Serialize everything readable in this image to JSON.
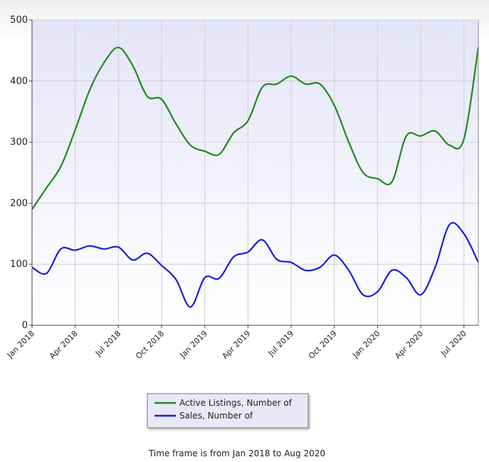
{
  "chart_data": {
    "type": "line",
    "categories": [
      "Jan 2018",
      null,
      null,
      "Apr 2018",
      null,
      null,
      "Jul 2018",
      null,
      null,
      "Oct 2018",
      null,
      null,
      "Jan 2019",
      null,
      null,
      "Apr 2019",
      null,
      null,
      "Jul 2019",
      null,
      null,
      "Oct 2019",
      null,
      null,
      "Jan 2020",
      null,
      null,
      "Apr 2020",
      null,
      null,
      "Jul 2020",
      null
    ],
    "series": [
      {
        "name": "Active Listings, Number of",
        "color": "#1e8a1e",
        "values": [
          190,
          225,
          260,
          320,
          385,
          430,
          455,
          425,
          375,
          370,
          330,
          295,
          285,
          280,
          315,
          335,
          390,
          395,
          408,
          395,
          395,
          360,
          300,
          250,
          240,
          235,
          310,
          310,
          318,
          295,
          305,
          455
        ]
      },
      {
        "name": "Sales, Number of",
        "color": "#1c1cdc",
        "values": [
          95,
          85,
          125,
          123,
          130,
          125,
          128,
          107,
          118,
          98,
          75,
          30,
          78,
          77,
          112,
          120,
          140,
          108,
          103,
          90,
          95,
          115,
          90,
          50,
          55,
          90,
          78,
          50,
          95,
          165,
          150,
          103
        ]
      }
    ],
    "ylim": [
      0,
      500
    ],
    "yticks": [
      0,
      100,
      200,
      300,
      400,
      500
    ],
    "grid": true,
    "legend": "bottom",
    "footnote": "Time frame is from Jan 2018 to Aug 2020"
  }
}
